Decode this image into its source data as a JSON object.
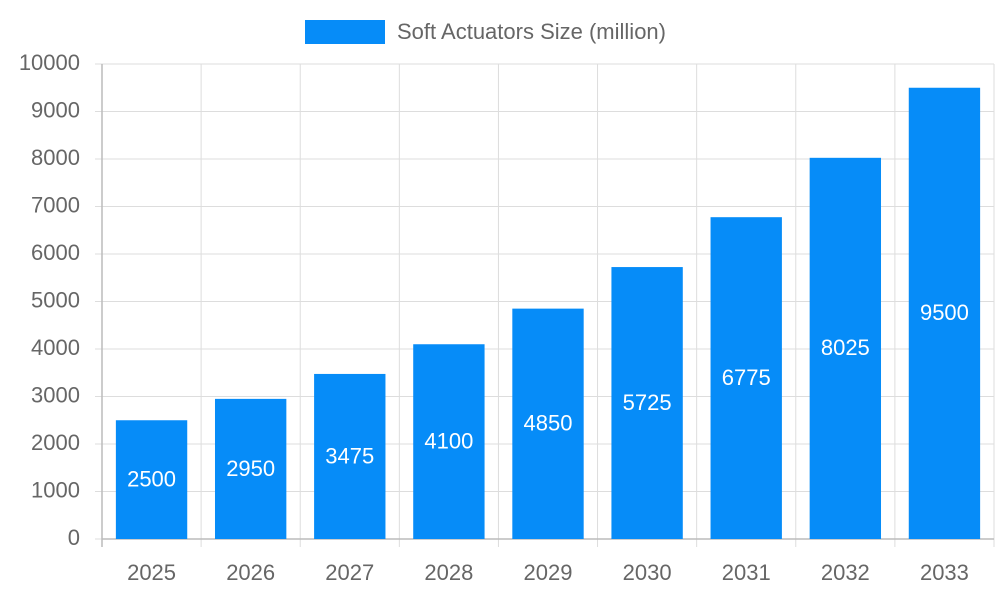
{
  "chart_data": {
    "type": "bar",
    "categories": [
      "2025",
      "2026",
      "2027",
      "2028",
      "2029",
      "2030",
      "2031",
      "2032",
      "2033"
    ],
    "series": [
      {
        "name": "Soft Actuators Size (million)",
        "color": "#068cf8",
        "values": [
          2500,
          2950,
          3475,
          4100,
          4850,
          5725,
          6775,
          8025,
          9500
        ]
      }
    ],
    "ylim": [
      0,
      10000
    ],
    "yticks": [
      0,
      1000,
      2000,
      3000,
      4000,
      5000,
      6000,
      7000,
      8000,
      9000,
      10000
    ],
    "grid": true,
    "legend": "top",
    "data_labels": true
  }
}
